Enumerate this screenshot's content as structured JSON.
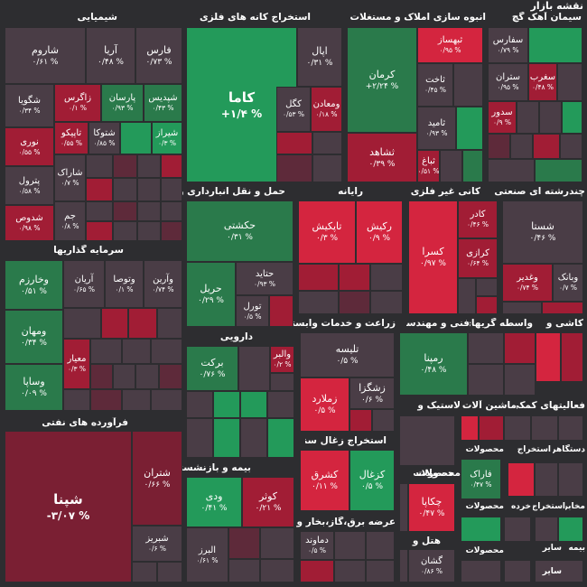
{
  "title": "نقشه بازار",
  "colors": {
    "background": "#2d2d30",
    "dg": "#239a5a",
    "mg": "#2a7a4b",
    "lg": "#1e5b3a",
    "br": "#d4253f",
    "mr": "#a11d35",
    "dr": "#7a1f33",
    "wr": "#5e2a3a",
    "gr": "#4a3d46"
  },
  "sectors": {
    "chem": "شیمیایی",
    "mines": "استخراج کانه های فلزی",
    "mass": "انبوه سازی املاک و مستغلات",
    "cement": "سیمان آهک گچ",
    "transport": "حمل و نقل انبارداری و",
    "computer": "رایانه",
    "nonmetal": "کانی غیر فلزی",
    "car": "چندرشته ای صنعتی",
    "invest": "سرمایه گذاریها",
    "pharma": "دارویی",
    "agri": "زراعت و خدمات وابسته",
    "eng": "فنی و مهندسی",
    "brokers": "واسطه گریهای",
    "tiles": "کاشی و",
    "oil": "فرآورده های نفتی",
    "insurance": "بیمه و بازنشستگی",
    "coal": "استخراج زغال سنگ",
    "electric": "عرضه برق،گاز،بخار و آب",
    "rubber": "لاستیک و",
    "machinery": "ماشین آلات و",
    "aux": "فعالیتهای کمکی",
    "products": "محصولات",
    "hotel": "هتل و",
    "stone": "استخراج",
    "stone2": "استخراج",
    "loc": "استخراج",
    "retail": "خرده",
    "tank": "مخابر",
    "misc1": "دستگاهر",
    "insure2": "بیمه",
    "other": "سایر",
    "other2": "سایر"
  },
  "tiles": [
    {
      "id": "sharom",
      "name": "شاروم",
      "val": "۰/۶۱ %"
    },
    {
      "id": "arya",
      "name": "آریا",
      "val": "۰/۴۸ %"
    },
    {
      "id": "fars",
      "name": "فارس",
      "val": "۰/۷۳ %"
    },
    {
      "id": "shgooya",
      "name": "شگویا",
      "val": "۰/۳۴ %"
    },
    {
      "id": "zagros",
      "name": "زاگرس",
      "val": "۰/۱ %"
    },
    {
      "id": "parsan",
      "name": "پارسان",
      "val": "۰/۹۳ %"
    },
    {
      "id": "shepdis",
      "name": "شپدیس",
      "val": "۰/۴۳ %"
    },
    {
      "id": "nouri",
      "name": "نوری",
      "val": "۰/۵۵ %"
    },
    {
      "id": "tapico",
      "name": "تاپیکو",
      "val": "۰/۵۵ %"
    },
    {
      "id": "shatran2",
      "name": "شتوکا",
      "val": "۰/۸۵ %"
    },
    {
      "id": "shiraz",
      "name": "شیراز",
      "val": "۰/۳ %"
    },
    {
      "id": "petrol",
      "name": "پترول",
      "val": "۰/۵۸ %"
    },
    {
      "id": "sharak",
      "name": "شاراک",
      "val": "۰/۷ %"
    },
    {
      "id": "shadoos",
      "name": "شدوص",
      "val": "۰/۹۸ %"
    },
    {
      "id": "jam",
      "name": "جم",
      "val": "۰/۸ %"
    },
    {
      "id": "kama",
      "name": "کاما",
      "val": "+۱/۴ %"
    },
    {
      "id": "apal",
      "name": "اپال",
      "val": "۰/۳۱ %"
    },
    {
      "id": "kegol",
      "name": "کگل",
      "val": "۰/۵۳ %"
    },
    {
      "id": "madan",
      "name": "ومعادن",
      "val": "۰/۱۸ %"
    },
    {
      "id": "kerman",
      "name": "کرمان",
      "val": "+۲/۲۴ %"
    },
    {
      "id": "thebsaz",
      "name": "ثبهساز",
      "val": "۰/۹۵ %"
    },
    {
      "id": "sakhat",
      "name": "ثاخت",
      "val": "۰/۴۵ %"
    },
    {
      "id": "samid",
      "name": "ثامید",
      "val": "۰/۹۳ %"
    },
    {
      "id": "shahad",
      "name": "ثشاهد",
      "val": "۰/۳۹ %"
    },
    {
      "id": "sebagh",
      "name": "ثباغ",
      "val": "۰/۵۱ %"
    },
    {
      "id": "safars",
      "name": "سفارس",
      "val": "۰/۷۹ %"
    },
    {
      "id": "starn",
      "name": "ستران",
      "val": "۰/۹۵ %"
    },
    {
      "id": "sgharb",
      "name": "سغرب",
      "val": "۰/۴۸ %"
    },
    {
      "id": "sadur",
      "name": "سدور",
      "val": "۰/۹ %"
    },
    {
      "id": "hakeshti",
      "name": "حکشتی",
      "val": "۰/۳۱ %"
    },
    {
      "id": "hatid",
      "name": "حتاید",
      "val": "۰/۹۳ %"
    },
    {
      "id": "harir",
      "name": "حریل",
      "val": "۰/۲۹ %"
    },
    {
      "id": "tourin",
      "name": "تورل",
      "val": "۰/۵ %"
    },
    {
      "id": "tapkish",
      "name": "تاپکیش",
      "val": "۰/۳ %"
    },
    {
      "id": "rakish",
      "name": "رکیش",
      "val": "۰/۹ %"
    },
    {
      "id": "kader",
      "name": "کادر",
      "val": "۰/۴۶ %"
    },
    {
      "id": "kesra",
      "name": "کسرا",
      "val": "۰/۹۷ %"
    },
    {
      "id": "karazi",
      "name": "کرازی",
      "val": "۰/۶۴ %"
    },
    {
      "id": "shasta",
      "name": "شستا",
      "val": "۰/۴۶ %"
    },
    {
      "id": "vakbank",
      "name": "وبانک",
      "val": "۰/۷ %"
    },
    {
      "id": "vaghadir",
      "name": "وغدیر",
      "val": "۰/۷۴ %"
    },
    {
      "id": "vkharazm",
      "name": "وخارزم",
      "val": "۰/۵۱ %"
    },
    {
      "id": "arian",
      "name": "آریان",
      "val": "۰/۶۵ %"
    },
    {
      "id": "vtosa",
      "name": "وتوصا",
      "val": "۰/۱ %"
    },
    {
      "id": "vaarin",
      "name": "وآرین",
      "val": "۰/۷۴ %"
    },
    {
      "id": "vamhan",
      "name": "ومهان",
      "val": "۰/۳۴ %"
    },
    {
      "id": "meyar",
      "name": "معیار",
      "val": "۰/۳ %"
    },
    {
      "id": "vsapa",
      "name": "وساپا",
      "val": "۰/۰۹ %"
    },
    {
      "id": "barkat",
      "name": "برکت",
      "val": "۰/۷۶ %"
    },
    {
      "id": "valbar",
      "name": "والبر",
      "val": "۰/۲ %"
    },
    {
      "id": "talise",
      "name": "تلیسه",
      "val": "۰/۵ %"
    },
    {
      "id": "zarkeza",
      "name": "زشگزا",
      "val": "۰/۶ %"
    },
    {
      "id": "zmalard",
      "name": "زملارد",
      "val": "۰/۵ %"
    },
    {
      "id": "ramina",
      "name": "رمپنا",
      "val": "۰/۴۸ %"
    },
    {
      "id": "shepna",
      "name": "شپنا",
      "val": "-۳/۰۷ %"
    },
    {
      "id": "shatran",
      "name": "شتران",
      "val": "۰/۶۶ %"
    },
    {
      "id": "shebriz",
      "name": "شبریز",
      "val": "۰/۶ %"
    },
    {
      "id": "vadi",
      "name": "ودی",
      "val": "۰/۴۱ %"
    },
    {
      "id": "kover",
      "name": "کوثر",
      "val": "۰/۲۱ %"
    },
    {
      "id": "kesharq",
      "name": "کشرق",
      "val": "۰/۱۱ %"
    },
    {
      "id": "kezgal",
      "name": "کزغال",
      "val": "۰/۵ %"
    },
    {
      "id": "damavand",
      "name": "دماوند",
      "val": "۰/۵ %"
    },
    {
      "id": "chekapa",
      "name": "چکاپا",
      "val": "۰/۴۷ %"
    },
    {
      "id": "farak",
      "name": "فاراک",
      "val": "۰/۴۷ %"
    },
    {
      "id": "gesham",
      "name": "گشان",
      "val": "۰/۸۶ %"
    },
    {
      "id": "albrz",
      "name": "البرز",
      "val": "۰/۶۱ %"
    }
  ]
}
